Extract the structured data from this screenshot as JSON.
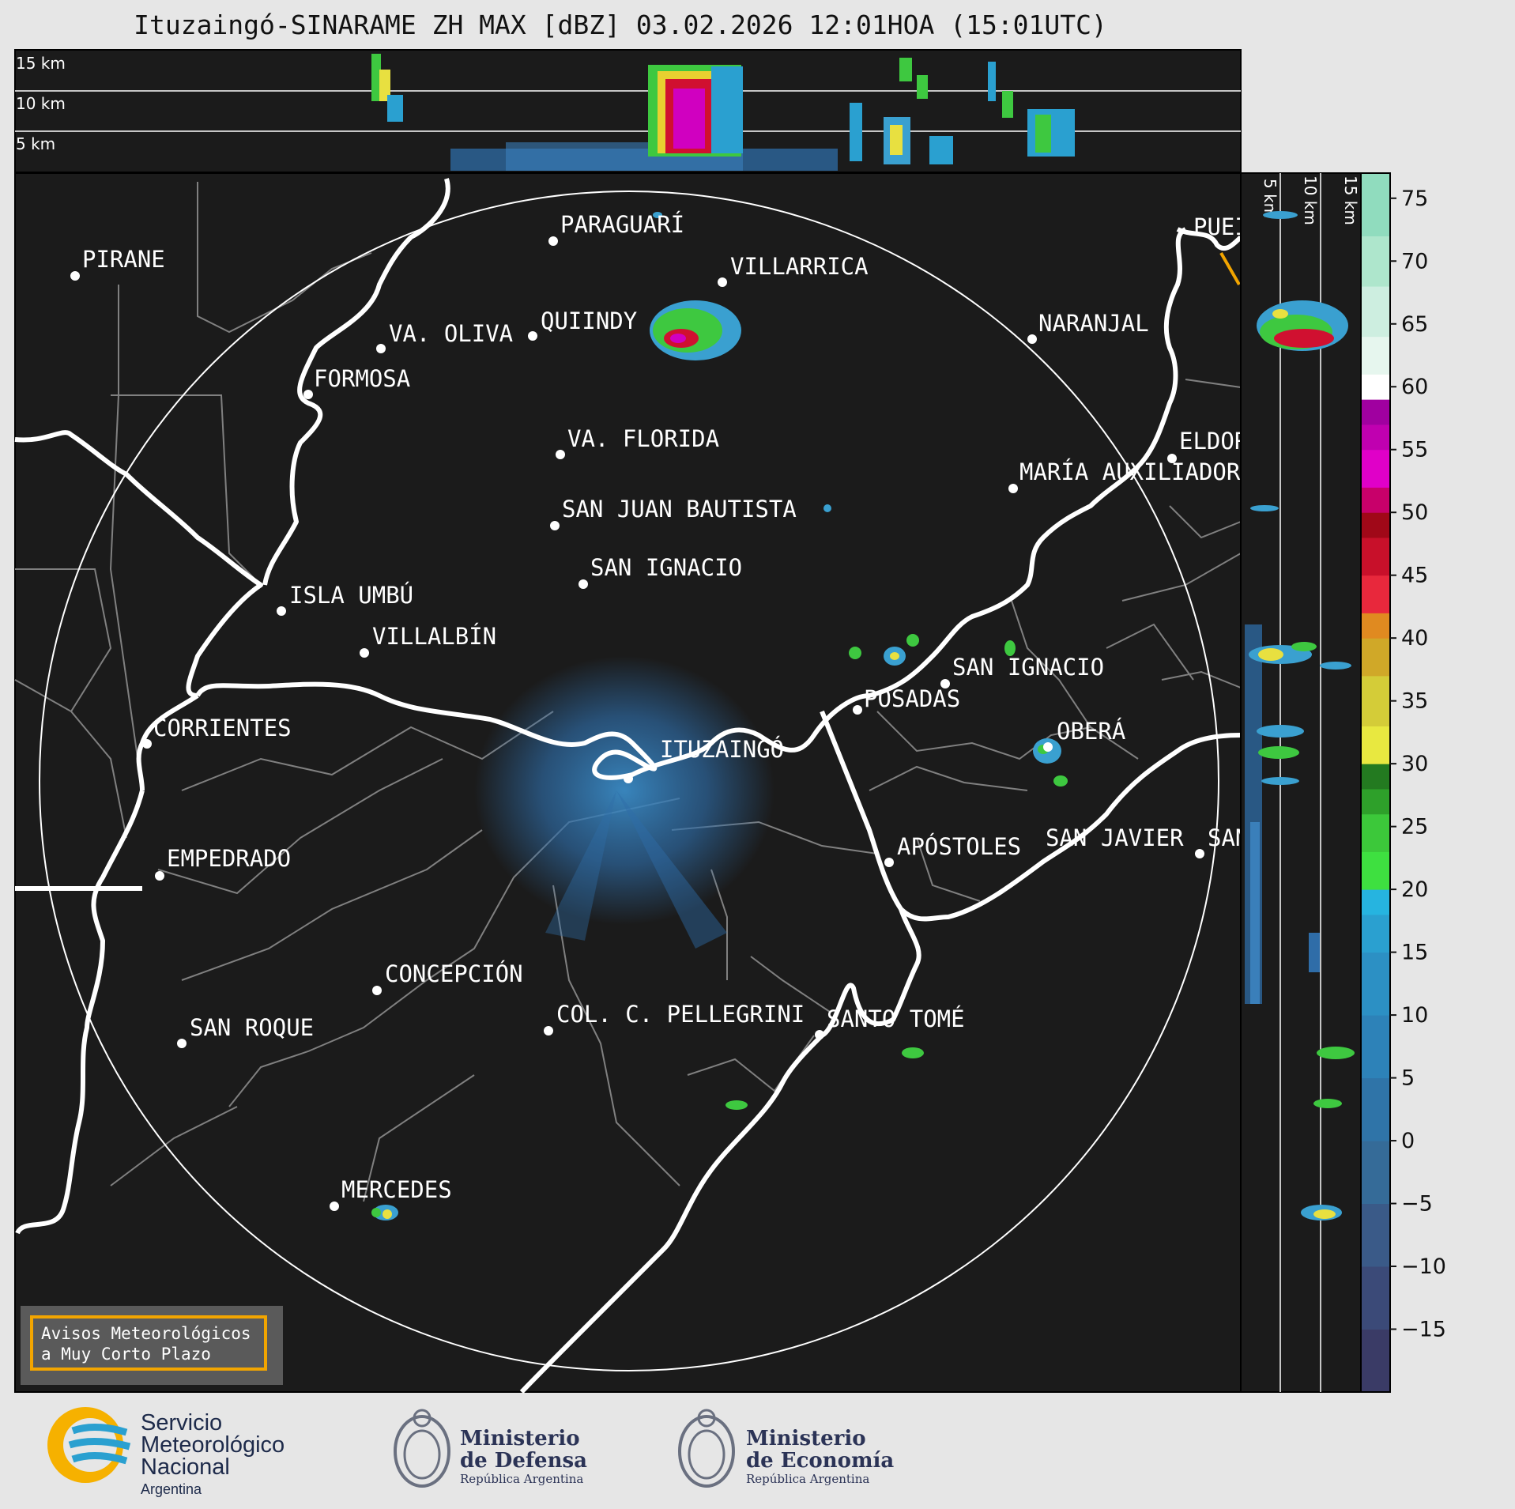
{
  "title": "Ituzaingó-SINARAME ZH MAX [dBZ] 03.02.2026 12:01HOA (15:01UTC)",
  "top_panel": {
    "height_labels": [
      "15 km",
      "10 km",
      "5 km"
    ]
  },
  "side_panel": {
    "height_labels": [
      "5 km",
      "10 km",
      "15 km"
    ]
  },
  "colorbar": {
    "ticks": [
      "75",
      "70",
      "65",
      "60",
      "55",
      "50",
      "45",
      "40",
      "35",
      "30",
      "25",
      "20",
      "15",
      "10",
      "5",
      "0",
      "−5",
      "−10",
      "−15"
    ],
    "min": -20,
    "max": 77
  },
  "cities": [
    {
      "name": "PIRANE"
    },
    {
      "name": "PARAGUARÍ"
    },
    {
      "name": "VILLARRICA"
    },
    {
      "name": "QUIINDY"
    },
    {
      "name": "VA. OLIVA"
    },
    {
      "name": "FORMOSA"
    },
    {
      "name": "NARANJAL"
    },
    {
      "name": "PUEI"
    },
    {
      "name": "ELDOR"
    },
    {
      "name": "MARÍA AUXILIADOR"
    },
    {
      "name": "VA. FLORIDA"
    },
    {
      "name": "SAN JUAN BAUTISTA"
    },
    {
      "name": "SAN IGNACIO"
    },
    {
      "name": "ISLA UMBÚ"
    },
    {
      "name": "VILLALBÍN"
    },
    {
      "name": "SAN IGNACIO"
    },
    {
      "name": "POSADAS"
    },
    {
      "name": "CORRIENTES"
    },
    {
      "name": "ITUZAINGÓ"
    },
    {
      "name": "OBERÁ"
    },
    {
      "name": "EMPEDRADO"
    },
    {
      "name": "APÓSTOLES"
    },
    {
      "name": "SAN JAVIER"
    },
    {
      "name": "SAN"
    },
    {
      "name": "CONCEPCIÓN"
    },
    {
      "name": "COL. C. PELLEGRINI"
    },
    {
      "name": "SANTO TOMÉ"
    },
    {
      "name": "SAN ROQUE"
    },
    {
      "name": "MERCEDES"
    }
  ],
  "warning": {
    "line1": "Avisos Meteorológicos",
    "line2": "a Muy Corto Plazo"
  },
  "logos": {
    "smn": {
      "line1": "Servicio",
      "line2": "Meteorológico",
      "line3": "Nacional",
      "line4": "Argentina"
    },
    "defensa": {
      "line1": "Ministerio",
      "line2": "de Defensa",
      "line3": "República Argentina"
    },
    "economia": {
      "line1": "Ministerio",
      "line2": "de Economía",
      "line3": "República Argentina"
    }
  },
  "colors": {
    "background": "#1b1b1b",
    "border_lines": "#ffffff",
    "province_lines": "#808080",
    "warning_border": "#f2a500"
  }
}
